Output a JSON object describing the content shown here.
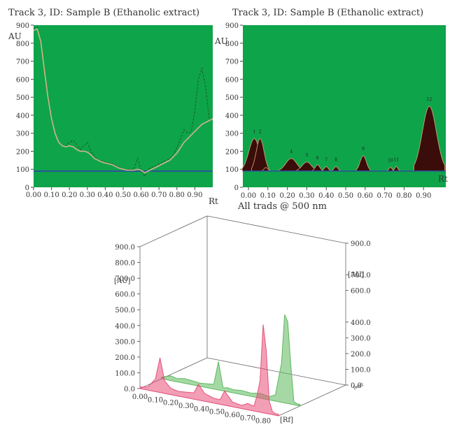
{
  "chart_data": [
    {
      "type": "line",
      "title": "Track 3, ID: Sample B (Ethanolic extract)",
      "ylabel": "AU",
      "xlabel": "Rt",
      "xlim": [
        0.0,
        1.0
      ],
      "ylim": [
        0,
        900
      ],
      "y_ticks": [
        "0",
        "100",
        "200",
        "300",
        "400",
        "500",
        "600",
        "700",
        "800",
        "900"
      ],
      "x_ticks": [
        "0.00",
        "0.10",
        "0.20",
        "0.30",
        "0.40",
        "0.50",
        "0.60",
        "0.70",
        "0.80",
        "0.90"
      ],
      "baseline": 90,
      "colors": {
        "plot_bg": "#0ea44a",
        "raw": "#1b5e20",
        "smoothed": "#d2b48c",
        "baseline": "#2b4f9e"
      },
      "series": [
        {
          "x": [
            0.0,
            0.02,
            0.04,
            0.06,
            0.08,
            0.1,
            0.12,
            0.14,
            0.16,
            0.18,
            0.2,
            0.22,
            0.24,
            0.26,
            0.28,
            0.3,
            0.32,
            0.34,
            0.36,
            0.38,
            0.4,
            0.42,
            0.44,
            0.46,
            0.48,
            0.5,
            0.52,
            0.54,
            0.56,
            0.58,
            0.6,
            0.62,
            0.64,
            0.66,
            0.68,
            0.7,
            0.72,
            0.74,
            0.76,
            0.78,
            0.8,
            0.82,
            0.84,
            0.86,
            0.88,
            0.9,
            0.92,
            0.94,
            0.96,
            0.98,
            1.0
          ],
          "values": [
            880,
            890,
            800,
            640,
            490,
            370,
            300,
            250,
            230,
            230,
            250,
            260,
            240,
            210,
            230,
            250,
            200,
            170,
            150,
            145,
            140,
            135,
            130,
            120,
            110,
            100,
            100,
            100,
            100,
            160,
            100,
            60,
            100,
            110,
            120,
            130,
            140,
            150,
            160,
            180,
            220,
            270,
            320,
            300,
            310,
            420,
            600,
            660,
            560,
            380,
            370
          ]
        },
        {
          "x": [
            0.0,
            0.02,
            0.04,
            0.06,
            0.08,
            0.1,
            0.12,
            0.14,
            0.16,
            0.18,
            0.2,
            0.22,
            0.24,
            0.26,
            0.28,
            0.3,
            0.32,
            0.34,
            0.36,
            0.38,
            0.4,
            0.42,
            0.44,
            0.46,
            0.48,
            0.5,
            0.52,
            0.54,
            0.56,
            0.58,
            0.6,
            0.62,
            0.64,
            0.66,
            0.68,
            0.7,
            0.72,
            0.74,
            0.76,
            0.78,
            0.8,
            0.82,
            0.84,
            0.86,
            0.88,
            0.9,
            0.92,
            0.94,
            0.96,
            0.98,
            1.0
          ],
          "values": [
            870,
            880,
            810,
            650,
            500,
            380,
            300,
            250,
            230,
            225,
            230,
            225,
            210,
            200,
            200,
            195,
            180,
            160,
            150,
            140,
            135,
            130,
            125,
            115,
            105,
            100,
            95,
            95,
            95,
            100,
            95,
            80,
            90,
            100,
            110,
            120,
            130,
            140,
            150,
            170,
            190,
            220,
            250,
            270,
            290,
            310,
            330,
            350,
            360,
            370,
            380
          ]
        }
      ]
    },
    {
      "type": "area",
      "title": "Track 3, ID: Sample B (Ethanolic extract)",
      "ylabel": "AU",
      "xlabel": "Rt",
      "xlim": [
        0.0,
        1.0
      ],
      "ylim": [
        0,
        900
      ],
      "y_ticks": [
        "0",
        "100",
        "200",
        "300",
        "400",
        "500",
        "600",
        "700",
        "800",
        "900"
      ],
      "x_ticks": [
        "0.00",
        "0.10",
        "0.20",
        "0.30",
        "0.40",
        "0.50",
        "0.60",
        "0.70",
        "0.80",
        "0.90"
      ],
      "baseline": 90,
      "colors": {
        "plot_bg": "#0ea44a",
        "peak_fill": "#3a0d0a",
        "peak_edge": "#d9a77a",
        "baseline": "#2b4f9e"
      },
      "peaks": [
        {
          "label": "1",
          "rt": 0.03,
          "height": 270,
          "width": 0.028
        },
        {
          "label": "2",
          "rt": 0.06,
          "height": 270,
          "width": 0.02
        },
        {
          "label": "",
          "rt": 0.09,
          "height": 110,
          "width": 0.01
        },
        {
          "label": "4",
          "rt": 0.22,
          "height": 160,
          "width": 0.028
        },
        {
          "label": "5",
          "rt": 0.3,
          "height": 140,
          "width": 0.024
        },
        {
          "label": "6",
          "rt": 0.355,
          "height": 125,
          "width": 0.012
        },
        {
          "label": "7",
          "rt": 0.4,
          "height": 115,
          "width": 0.01
        },
        {
          "label": "8",
          "rt": 0.45,
          "height": 115,
          "width": 0.01
        },
        {
          "label": "9",
          "rt": 0.59,
          "height": 175,
          "width": 0.016
        },
        {
          "label": "10",
          "rt": 0.73,
          "height": 110,
          "width": 0.008
        },
        {
          "label": "11",
          "rt": 0.76,
          "height": 115,
          "width": 0.008
        },
        {
          "label": "12",
          "rt": 0.93,
          "height": 450,
          "width": 0.036
        }
      ]
    },
    {
      "type": "line",
      "title": "All trads @ 500 nm",
      "xlabel": "[Rf]",
      "ylabel": "[AU]",
      "zlabel": "[nm]",
      "xlim": [
        0.0,
        0.9
      ],
      "ylim": [
        0.0,
        900.0
      ],
      "y_ticks": [
        "0.0",
        "100.0",
        "200.0",
        "300.0",
        "400.0",
        "500.0",
        "600.0",
        "700.0",
        "800.0",
        "900.0"
      ],
      "y_ticks_right": [
        "0.0",
        "100.0",
        "200.0",
        "300.0",
        "400.0",
        "600.0",
        "700.0",
        "900.0"
      ],
      "x_ticks": [
        "0.00",
        "0.10",
        "0.20",
        "0.30",
        "0.40",
        "0.50",
        "0.60",
        "0.70",
        "0.80"
      ],
      "depth_ticks": [
        "",
        "",
        "",
        "",
        "",
        "",
        "",
        "",
        ""
      ],
      "colors": {
        "front": "#e8507a",
        "back": "#5cb85c"
      },
      "series": [
        {
          "depth": 1,
          "x": [
            0.0,
            0.03,
            0.06,
            0.1,
            0.15,
            0.2,
            0.25,
            0.3,
            0.34,
            0.37,
            0.4,
            0.43,
            0.47,
            0.52,
            0.58,
            0.64,
            0.7,
            0.74,
            0.78,
            0.8,
            0.82,
            0.84,
            0.86,
            0.88,
            0.9
          ],
          "values": [
            10,
            20,
            30,
            20,
            30,
            25,
            20,
            25,
            30,
            180,
            20,
            25,
            20,
            25,
            20,
            30,
            20,
            40,
            250,
            560,
            520,
            250,
            20,
            10,
            10
          ]
        },
        {
          "depth": 0,
          "x": [
            0.0,
            0.05,
            0.1,
            0.13,
            0.16,
            0.2,
            0.25,
            0.3,
            0.35,
            0.38,
            0.42,
            0.48,
            0.52,
            0.55,
            0.6,
            0.66,
            0.7,
            0.74,
            0.76,
            0.78,
            0.8,
            0.82,
            0.84,
            0.86,
            0.88,
            0.9
          ],
          "values": [
            10,
            20,
            80,
            220,
            80,
            40,
            30,
            35,
            40,
            100,
            50,
            30,
            30,
            90,
            30,
            20,
            40,
            30,
            100,
            200,
            560,
            400,
            80,
            20,
            10,
            10
          ]
        }
      ]
    }
  ]
}
